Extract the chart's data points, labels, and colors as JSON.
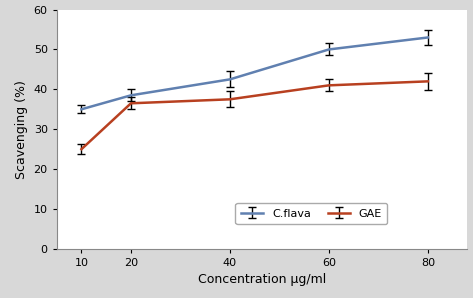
{
  "x": [
    10,
    20,
    40,
    60,
    80
  ],
  "c_flava_y": [
    35.0,
    38.5,
    42.5,
    50.0,
    53.0
  ],
  "gae_y": [
    25.0,
    36.5,
    37.5,
    41.0,
    42.0
  ],
  "c_flava_err": [
    1.0,
    1.5,
    2.0,
    1.5,
    1.8
  ],
  "gae_err": [
    1.2,
    1.5,
    2.0,
    1.5,
    2.2
  ],
  "c_flava_color": "#6080B0",
  "gae_color": "#B84020",
  "xlabel": "Concentration µg/ml",
  "ylabel": "Scavenging (%)",
  "ylim": [
    0,
    60
  ],
  "yticks": [
    0,
    10,
    20,
    30,
    40,
    50,
    60
  ],
  "xlim": [
    5,
    88
  ],
  "xticks": [
    10,
    20,
    40,
    60,
    80
  ],
  "legend_labels": [
    "C.flava",
    "GAE"
  ],
  "bg_color": "#D8D8D8",
  "plot_bg_color": "#FFFFFF",
  "label_fontsize": 9,
  "tick_fontsize": 8,
  "legend_fontsize": 8,
  "linewidth": 1.8,
  "capsize": 3,
  "elinewidth": 1.0
}
